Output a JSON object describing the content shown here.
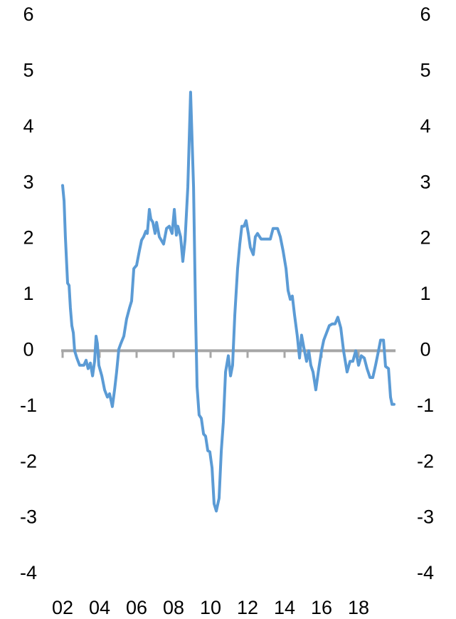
{
  "chart_data": {
    "type": "line",
    "x": [
      2002.0,
      2002.08,
      2002.15,
      2002.27,
      2002.35,
      2002.42,
      2002.5,
      2002.58,
      2002.65,
      2002.77,
      2002.92,
      2003.15,
      2003.27,
      2003.38,
      2003.5,
      2003.62,
      2003.73,
      2003.81,
      2003.88,
      2003.96,
      2004.12,
      2004.27,
      2004.42,
      2004.54,
      2004.69,
      2004.81,
      2004.92,
      2005.04,
      2005.15,
      2005.31,
      2005.46,
      2005.62,
      2005.73,
      2005.85,
      2006.0,
      2006.15,
      2006.27,
      2006.38,
      2006.5,
      2006.58,
      2006.69,
      2006.77,
      2006.88,
      2007.0,
      2007.08,
      2007.23,
      2007.46,
      2007.62,
      2007.77,
      2007.92,
      2008.04,
      2008.15,
      2008.23,
      2008.38,
      2008.5,
      2008.62,
      2008.77,
      2008.92,
      2009.08,
      2009.19,
      2009.27,
      2009.38,
      2009.5,
      2009.62,
      2009.73,
      2009.85,
      2009.96,
      2010.08,
      2010.19,
      2010.31,
      2010.46,
      2010.58,
      2010.69,
      2010.81,
      2010.96,
      2011.08,
      2011.19,
      2011.31,
      2011.46,
      2011.58,
      2011.69,
      2011.81,
      2011.92,
      2012.04,
      2012.15,
      2012.31,
      2012.42,
      2012.54,
      2012.73,
      2013.23,
      2013.38,
      2013.62,
      2013.77,
      2013.92,
      2014.08,
      2014.19,
      2014.31,
      2014.42,
      2014.54,
      2014.69,
      2014.81,
      2014.92,
      2015.04,
      2015.19,
      2015.31,
      2015.42,
      2015.54,
      2015.69,
      2015.85,
      2016.0,
      2016.12,
      2016.27,
      2016.42,
      2016.58,
      2016.73,
      2016.88,
      2017.04,
      2017.19,
      2017.38,
      2017.54,
      2017.69,
      2017.85,
      2018.0,
      2018.15,
      2018.31,
      2018.46,
      2018.62,
      2018.77,
      2018.92,
      2019.08,
      2019.19,
      2019.35,
      2019.46,
      2019.62,
      2019.73,
      2019.81,
      2019.92
    ],
    "series": [
      {
        "color": "#5b9bd5",
        "values": [
          2.96,
          2.68,
          2.04,
          1.21,
          1.17,
          0.77,
          0.45,
          0.32,
          0,
          -0.13,
          -0.26,
          -0.26,
          -0.17,
          -0.32,
          -0.22,
          -0.45,
          -0.19,
          0.26,
          0.13,
          -0.26,
          -0.45,
          -0.7,
          -0.83,
          -0.77,
          -1.0,
          -0.7,
          -0.38,
          0.03,
          0.13,
          0.26,
          0.57,
          0.77,
          0.89,
          1.47,
          1.53,
          1.79,
          1.98,
          2.04,
          2.14,
          2.1,
          2.53,
          2.36,
          2.3,
          2.1,
          2.3,
          2.04,
          1.91,
          2.19,
          2.23,
          2.1,
          2.53,
          2.07,
          2.23,
          2.04,
          1.6,
          1.98,
          2.93,
          4.63,
          2.93,
          0.64,
          -0.64,
          -1.15,
          -1.21,
          -1.49,
          -1.53,
          -1.79,
          -1.81,
          -2.1,
          -2.74,
          -2.87,
          -2.64,
          -1.79,
          -1.28,
          -0.38,
          -0.09,
          -0.45,
          -0.26,
          0.64,
          1.47,
          1.91,
          2.23,
          2.23,
          2.33,
          2.1,
          1.85,
          1.72,
          2.04,
          2.1,
          2.0,
          2.0,
          2.19,
          2.19,
          2.04,
          1.79,
          1.47,
          1.08,
          0.92,
          0.98,
          0.64,
          0.26,
          -0.13,
          0.28,
          0.06,
          -0.19,
          0,
          -0.26,
          -0.38,
          -0.7,
          -0.32,
          0,
          0.19,
          0.32,
          0.45,
          0.48,
          0.48,
          0.6,
          0.41,
          0,
          -0.38,
          -0.19,
          -0.19,
          0,
          -0.26,
          -0.09,
          -0.13,
          -0.32,
          -0.48,
          -0.48,
          -0.26,
          0,
          0.19,
          0.19,
          -0.28,
          -0.32,
          -0.83,
          -0.96,
          -0.96
        ]
      }
    ],
    "xlim": [
      2002,
      2020
    ],
    "xticks": [
      {
        "value": 2002,
        "label": "02"
      },
      {
        "value": 2004,
        "label": "04"
      },
      {
        "value": 2006,
        "label": "06"
      },
      {
        "value": 2008,
        "label": "08"
      },
      {
        "value": 2010,
        "label": "10"
      },
      {
        "value": 2012,
        "label": "12"
      },
      {
        "value": 2014,
        "label": "14"
      },
      {
        "value": 2016,
        "label": "16"
      },
      {
        "value": 2018,
        "label": "18"
      }
    ],
    "ylim": [
      -4,
      6
    ],
    "yticks": [
      -4,
      -3,
      -2,
      -1,
      0,
      1,
      2,
      3,
      4,
      5,
      6
    ],
    "y2lim": [
      -4,
      6
    ],
    "y2ticks": [
      -4,
      -3,
      -2,
      -1,
      0,
      1,
      2,
      3,
      4,
      5,
      6
    ]
  }
}
